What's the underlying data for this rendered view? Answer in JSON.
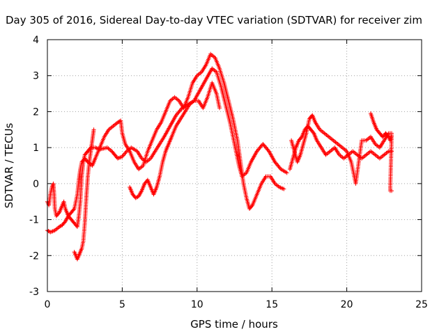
{
  "chart_data": {
    "type": "scatter",
    "title": "Day 305 of 2016, Sidereal Day-to-day VTEC variation (SDTVAR) for receiver zim",
    "xlabel": "GPS time / hours",
    "ylabel": "SDTVAR / TECUs",
    "xlim": [
      0,
      25
    ],
    "ylim": [
      -3,
      4
    ],
    "xticks": [
      "0",
      "5",
      "10",
      "15",
      "20",
      "25"
    ],
    "yticks": [
      "-3",
      "-2",
      "-1",
      "0",
      "1",
      "2",
      "3",
      "4"
    ],
    "grid": true,
    "marker": "plus",
    "color": "#ff0000",
    "series": [
      {
        "points": [
          [
            0.0,
            -0.5
          ],
          [
            0.1,
            -0.6
          ],
          [
            0.2,
            -0.3
          ],
          [
            0.3,
            -0.1
          ],
          [
            0.4,
            0.0
          ],
          [
            0.45,
            -0.3
          ],
          [
            0.5,
            -0.7
          ],
          [
            0.6,
            -0.9
          ],
          [
            0.8,
            -0.8
          ],
          [
            1.0,
            -0.6
          ],
          [
            1.1,
            -0.5
          ],
          [
            1.2,
            -0.7
          ],
          [
            1.4,
            -0.9
          ],
          [
            1.6,
            -1.0
          ],
          [
            1.8,
            -1.1
          ],
          [
            2.0,
            -1.2
          ],
          [
            2.1,
            -0.9
          ],
          [
            2.2,
            -0.5
          ],
          [
            2.3,
            0.2
          ],
          [
            2.4,
            0.6
          ],
          [
            2.5,
            0.8
          ],
          [
            2.7,
            0.9
          ],
          [
            2.9,
            1.0
          ],
          [
            3.2,
            1.0
          ],
          [
            3.5,
            0.95
          ],
          [
            4.0,
            1.0
          ],
          [
            4.3,
            0.9
          ],
          [
            4.5,
            0.8
          ],
          [
            4.7,
            0.7
          ],
          [
            5.0,
            0.75
          ],
          [
            5.3,
            0.9
          ],
          [
            5.6,
            1.0
          ],
          [
            6.0,
            0.9
          ],
          [
            6.3,
            0.7
          ],
          [
            6.6,
            0.6
          ],
          [
            6.9,
            0.7
          ],
          [
            7.2,
            0.9
          ],
          [
            7.5,
            1.1
          ],
          [
            7.8,
            1.3
          ],
          [
            8.2,
            1.6
          ],
          [
            8.6,
            1.9
          ],
          [
            9.0,
            2.1
          ],
          [
            9.4,
            2.2
          ],
          [
            9.8,
            2.3
          ],
          [
            10.2,
            2.6
          ],
          [
            10.6,
            2.9
          ],
          [
            11.0,
            3.2
          ],
          [
            11.3,
            3.1
          ],
          [
            11.6,
            2.7
          ],
          [
            11.9,
            2.2
          ],
          [
            12.2,
            1.7
          ],
          [
            12.5,
            1.1
          ],
          [
            12.8,
            0.5
          ],
          [
            13.0,
            0.2
          ],
          [
            13.3,
            0.3
          ],
          [
            13.6,
            0.6
          ],
          [
            14.0,
            0.9
          ],
          [
            14.4,
            1.1
          ],
          [
            14.8,
            0.9
          ],
          [
            15.2,
            0.6
          ],
          [
            15.6,
            0.4
          ],
          [
            16.0,
            0.3
          ]
        ]
      },
      {
        "points": [
          [
            0.0,
            -1.3
          ],
          [
            0.2,
            -1.35
          ],
          [
            0.5,
            -1.3
          ],
          [
            0.8,
            -1.2
          ],
          [
            1.0,
            -1.15
          ],
          [
            1.2,
            -1.05
          ],
          [
            1.4,
            -0.9
          ],
          [
            1.6,
            -0.8
          ],
          [
            1.8,
            -0.7
          ],
          [
            1.9,
            -0.5
          ],
          [
            2.0,
            -0.3
          ],
          [
            2.1,
            0.1
          ],
          [
            2.2,
            0.4
          ],
          [
            2.3,
            0.6
          ],
          [
            2.5,
            0.7
          ],
          [
            2.7,
            0.6
          ],
          [
            3.0,
            0.5
          ],
          [
            3.2,
            0.7
          ],
          [
            3.5,
            1.0
          ],
          [
            3.8,
            1.3
          ],
          [
            4.1,
            1.5
          ],
          [
            4.4,
            1.6
          ],
          [
            4.7,
            1.7
          ],
          [
            4.9,
            1.75
          ],
          [
            5.0,
            1.4
          ],
          [
            5.2,
            1.1
          ],
          [
            5.5,
            0.9
          ],
          [
            5.8,
            0.6
          ],
          [
            6.1,
            0.4
          ],
          [
            6.4,
            0.5
          ],
          [
            6.7,
            0.9
          ],
          [
            7.0,
            1.2
          ],
          [
            7.3,
            1.5
          ],
          [
            7.6,
            1.7
          ],
          [
            7.9,
            2.0
          ],
          [
            8.2,
            2.3
          ],
          [
            8.5,
            2.4
          ],
          [
            8.8,
            2.3
          ],
          [
            9.1,
            2.1
          ],
          [
            9.4,
            2.4
          ],
          [
            9.7,
            2.8
          ],
          [
            10.0,
            3.0
          ],
          [
            10.3,
            3.1
          ],
          [
            10.6,
            3.3
          ],
          [
            10.9,
            3.6
          ],
          [
            11.2,
            3.5
          ],
          [
            11.5,
            3.2
          ],
          [
            11.8,
            2.8
          ],
          [
            12.1,
            2.3
          ],
          [
            12.4,
            1.8
          ],
          [
            12.7,
            1.2
          ],
          [
            12.9,
            0.6
          ],
          [
            13.1,
            0.0
          ],
          [
            13.3,
            -0.4
          ],
          [
            13.5,
            -0.7
          ],
          [
            13.7,
            -0.6
          ],
          [
            14.0,
            -0.3
          ],
          [
            14.3,
            0.0
          ],
          [
            14.6,
            0.2
          ],
          [
            14.9,
            0.2
          ],
          [
            15.2,
            0.0
          ],
          [
            15.5,
            -0.1
          ],
          [
            15.8,
            -0.15
          ]
        ]
      },
      {
        "points": [
          [
            1.8,
            -1.9
          ],
          [
            1.9,
            -2.0
          ],
          [
            2.0,
            -2.1
          ],
          [
            2.1,
            -2.0
          ],
          [
            2.2,
            -1.9
          ],
          [
            2.3,
            -1.8
          ],
          [
            2.4,
            -1.6
          ],
          [
            2.5,
            -1.1
          ],
          [
            2.6,
            -0.4
          ],
          [
            2.7,
            0.2
          ],
          [
            2.8,
            0.6
          ],
          [
            2.9,
            0.9
          ],
          [
            3.0,
            1.2
          ],
          [
            3.1,
            1.5
          ]
        ]
      },
      {
        "points": [
          [
            5.5,
            -0.1
          ],
          [
            5.7,
            -0.3
          ],
          [
            5.9,
            -0.4
          ],
          [
            6.1,
            -0.35
          ],
          [
            6.3,
            -0.2
          ],
          [
            6.5,
            0.0
          ],
          [
            6.7,
            0.1
          ],
          [
            6.9,
            -0.1
          ],
          [
            7.1,
            -0.3
          ],
          [
            7.3,
            -0.1
          ],
          [
            7.5,
            0.2
          ],
          [
            7.7,
            0.6
          ],
          [
            7.9,
            0.9
          ],
          [
            8.1,
            1.1
          ],
          [
            8.3,
            1.3
          ],
          [
            8.6,
            1.6
          ],
          [
            8.9,
            1.8
          ],
          [
            9.2,
            2.0
          ],
          [
            9.5,
            2.2
          ],
          [
            9.8,
            2.3
          ],
          [
            10.1,
            2.3
          ],
          [
            10.4,
            2.1
          ],
          [
            10.7,
            2.4
          ],
          [
            11.0,
            2.8
          ],
          [
            11.3,
            2.5
          ],
          [
            11.5,
            2.1
          ]
        ]
      },
      {
        "points": [
          [
            16.2,
            0.4
          ],
          [
            16.4,
            0.7
          ],
          [
            16.6,
            1.0
          ],
          [
            16.8,
            1.2
          ],
          [
            17.0,
            1.3
          ],
          [
            17.2,
            1.5
          ],
          [
            17.4,
            1.6
          ],
          [
            17.6,
            1.5
          ],
          [
            17.8,
            1.4
          ],
          [
            18.0,
            1.2
          ],
          [
            18.3,
            1.0
          ],
          [
            18.6,
            0.8
          ],
          [
            18.9,
            0.9
          ],
          [
            19.2,
            1.0
          ],
          [
            19.5,
            0.8
          ],
          [
            19.8,
            0.7
          ],
          [
            20.1,
            0.8
          ],
          [
            20.4,
            0.9
          ],
          [
            20.7,
            0.8
          ],
          [
            21.0,
            0.7
          ],
          [
            21.3,
            0.8
          ],
          [
            21.6,
            0.9
          ],
          [
            21.9,
            0.8
          ],
          [
            22.2,
            0.7
          ],
          [
            22.5,
            0.8
          ],
          [
            22.8,
            0.9
          ],
          [
            23.0,
            0.9
          ]
        ]
      },
      {
        "points": [
          [
            16.3,
            1.2
          ],
          [
            16.5,
            0.9
          ],
          [
            16.7,
            0.6
          ],
          [
            16.9,
            0.8
          ],
          [
            17.1,
            1.1
          ],
          [
            17.3,
            1.4
          ],
          [
            17.5,
            1.8
          ],
          [
            17.7,
            1.9
          ],
          [
            17.9,
            1.7
          ],
          [
            18.2,
            1.5
          ],
          [
            18.5,
            1.4
          ],
          [
            18.8,
            1.3
          ],
          [
            19.1,
            1.2
          ],
          [
            19.4,
            1.1
          ],
          [
            19.7,
            1.0
          ],
          [
            20.0,
            0.9
          ],
          [
            20.3,
            0.6
          ],
          [
            20.6,
            0.0
          ],
          [
            21.0,
            1.2
          ],
          [
            21.3,
            1.2
          ],
          [
            21.6,
            1.3
          ],
          [
            21.9,
            1.1
          ],
          [
            22.2,
            1.0
          ],
          [
            22.5,
            1.2
          ],
          [
            22.8,
            1.4
          ],
          [
            23.0,
            1.4
          ]
        ]
      },
      {
        "points": [
          [
            21.6,
            1.95
          ],
          [
            21.8,
            1.7
          ],
          [
            22.0,
            1.5
          ],
          [
            22.2,
            1.4
          ],
          [
            22.4,
            1.3
          ],
          [
            22.6,
            1.4
          ],
          [
            22.8,
            1.3
          ],
          [
            22.9,
            1.2
          ],
          [
            23.0,
            1.35
          ],
          [
            22.9,
            -0.2
          ],
          [
            23.0,
            -0.2
          ]
        ]
      }
    ]
  }
}
